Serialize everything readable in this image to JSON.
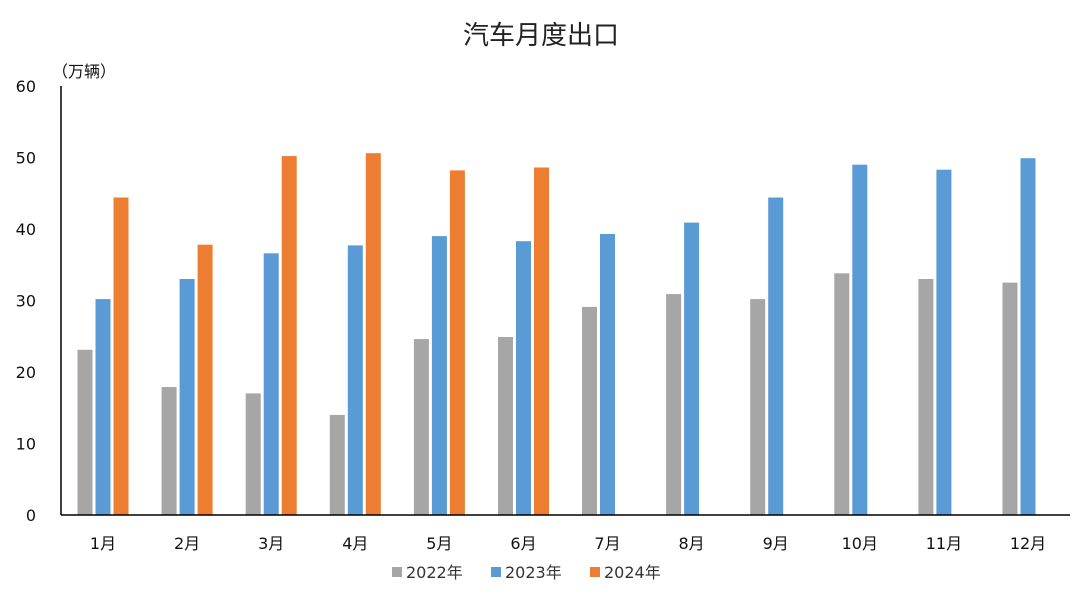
{
  "chart_data": {
    "type": "bar",
    "title": "汽车月度出口",
    "unit_label": "（万辆）",
    "categories": [
      "1月",
      "2月",
      "3月",
      "4月",
      "5月",
      "6月",
      "7月",
      "8月",
      "9月",
      "10月",
      "11月",
      "12月"
    ],
    "yticks": [
      "0",
      "10",
      "20",
      "30",
      "40",
      "50",
      "60"
    ],
    "ylim": [
      0,
      60
    ],
    "series": [
      {
        "name": "2022年",
        "color": "#a6a6a6",
        "values": [
          23.1,
          17.9,
          17.0,
          14.0,
          24.6,
          24.9,
          29.1,
          30.9,
          30.2,
          33.8,
          33.0,
          32.5
        ]
      },
      {
        "name": "2023年",
        "color": "#5b9bd5",
        "values": [
          30.2,
          33.0,
          36.6,
          37.7,
          39.0,
          38.3,
          39.3,
          40.9,
          44.4,
          49.0,
          48.3,
          49.9
        ]
      },
      {
        "name": "2024年",
        "color": "#ed7d31",
        "values": [
          44.4,
          37.8,
          50.2,
          50.6,
          48.2,
          48.6,
          null,
          null,
          null,
          null,
          null,
          null
        ]
      }
    ],
    "legend_position": "bottom",
    "grid": false
  }
}
